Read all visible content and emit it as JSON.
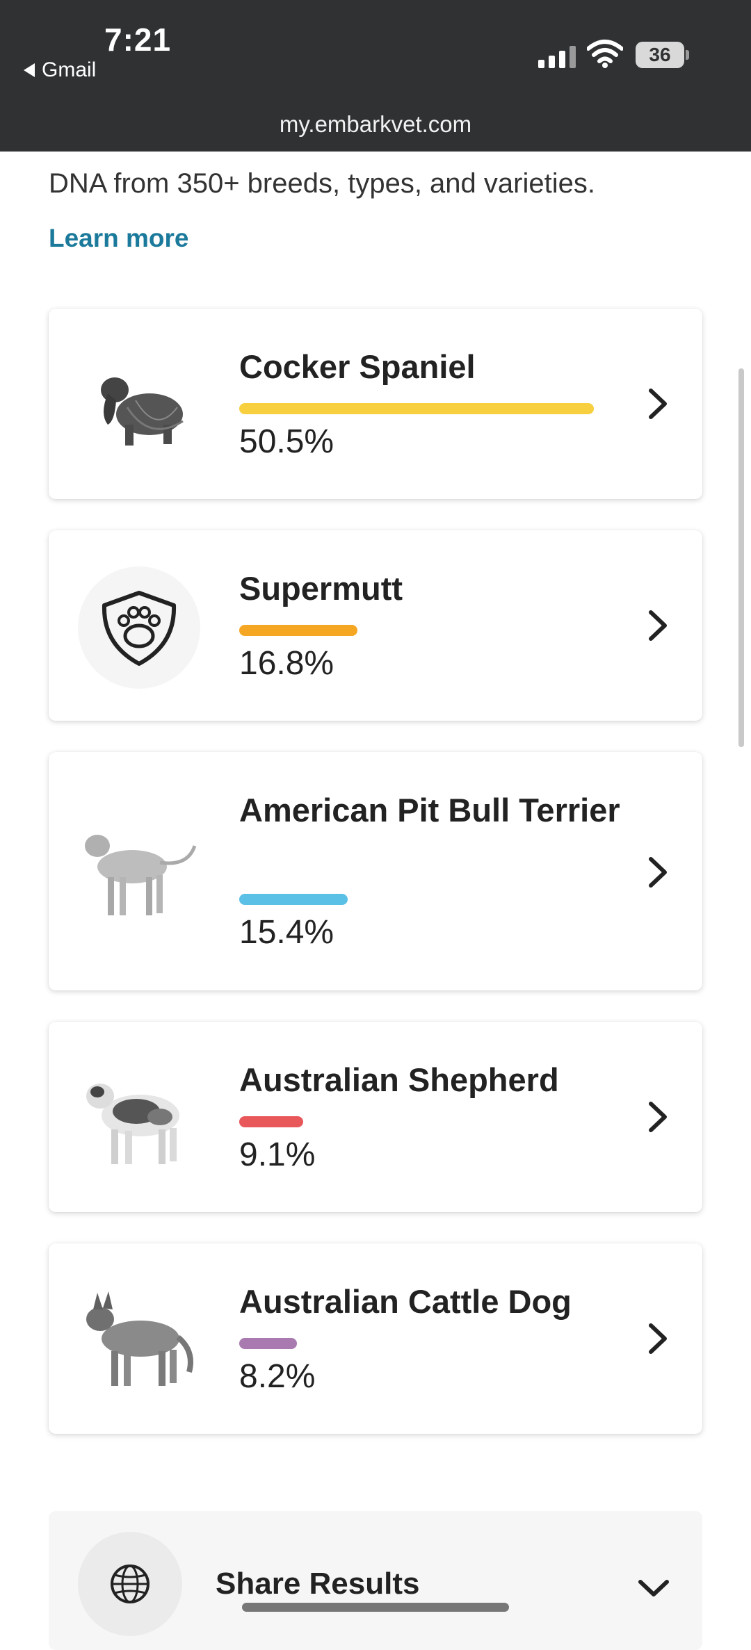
{
  "status_bar": {
    "time": "7:21",
    "back_app": "Gmail",
    "battery": "36",
    "url": "my.embarkvet.com"
  },
  "intro": {
    "text": "DNA from 350+ breeds, types, and varieties.",
    "learn_more": "Learn more"
  },
  "breeds": [
    {
      "name": "Cocker Spaniel",
      "percent": 50.5,
      "percent_label": "50.5%",
      "color": "#f7cf3f",
      "icon": "cocker-spaniel-illustration"
    },
    {
      "name": "Supermutt",
      "percent": 16.8,
      "percent_label": "16.8%",
      "color": "#f5a623",
      "icon": "paw-shield-icon"
    },
    {
      "name": "American Pit Bull Terrier",
      "percent": 15.4,
      "percent_label": "15.4%",
      "color": "#5bc0e6",
      "icon": "pit-bull-illustration"
    },
    {
      "name": "Australian Shepherd",
      "percent": 9.1,
      "percent_label": "9.1%",
      "color": "#e8575a",
      "icon": "australian-shepherd-illustration"
    },
    {
      "name": "Australian Cattle Dog",
      "percent": 8.2,
      "percent_label": "8.2%",
      "color": "#a87ab0",
      "icon": "cattle-dog-illustration"
    }
  ],
  "share": {
    "label": "Share Results",
    "icon": "globe-icon"
  }
}
